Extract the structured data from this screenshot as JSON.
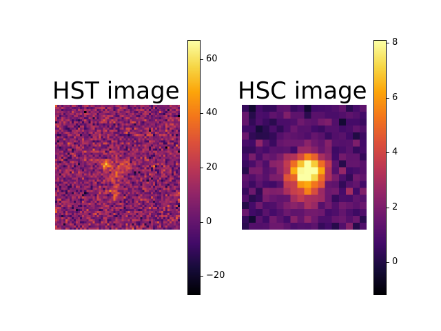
{
  "chart_data": [
    {
      "type": "heatmap",
      "title": "HST image",
      "colormap": "inferno",
      "colorbar": {
        "min": -27,
        "max": 67,
        "ticks": [
          -20,
          0,
          20,
          40,
          60
        ],
        "tick_labels": [
          "−20",
          "0",
          "20",
          "40",
          "60"
        ]
      },
      "grid_size": [
        60,
        60
      ],
      "description_values": {
        "background_level": 8,
        "peak_value": 60
      }
    },
    {
      "type": "heatmap",
      "title": "HSC image",
      "colormap": "inferno",
      "colorbar": {
        "min": -1.2,
        "max": 8.1,
        "ticks": [
          0,
          2,
          4,
          6,
          8
        ],
        "tick_labels": [
          "0",
          "2",
          "4",
          "6",
          "8"
        ]
      },
      "grid_size": [
        18,
        18
      ],
      "description_values": {
        "background_level": 0.8,
        "peak_value": 8
      }
    }
  ]
}
